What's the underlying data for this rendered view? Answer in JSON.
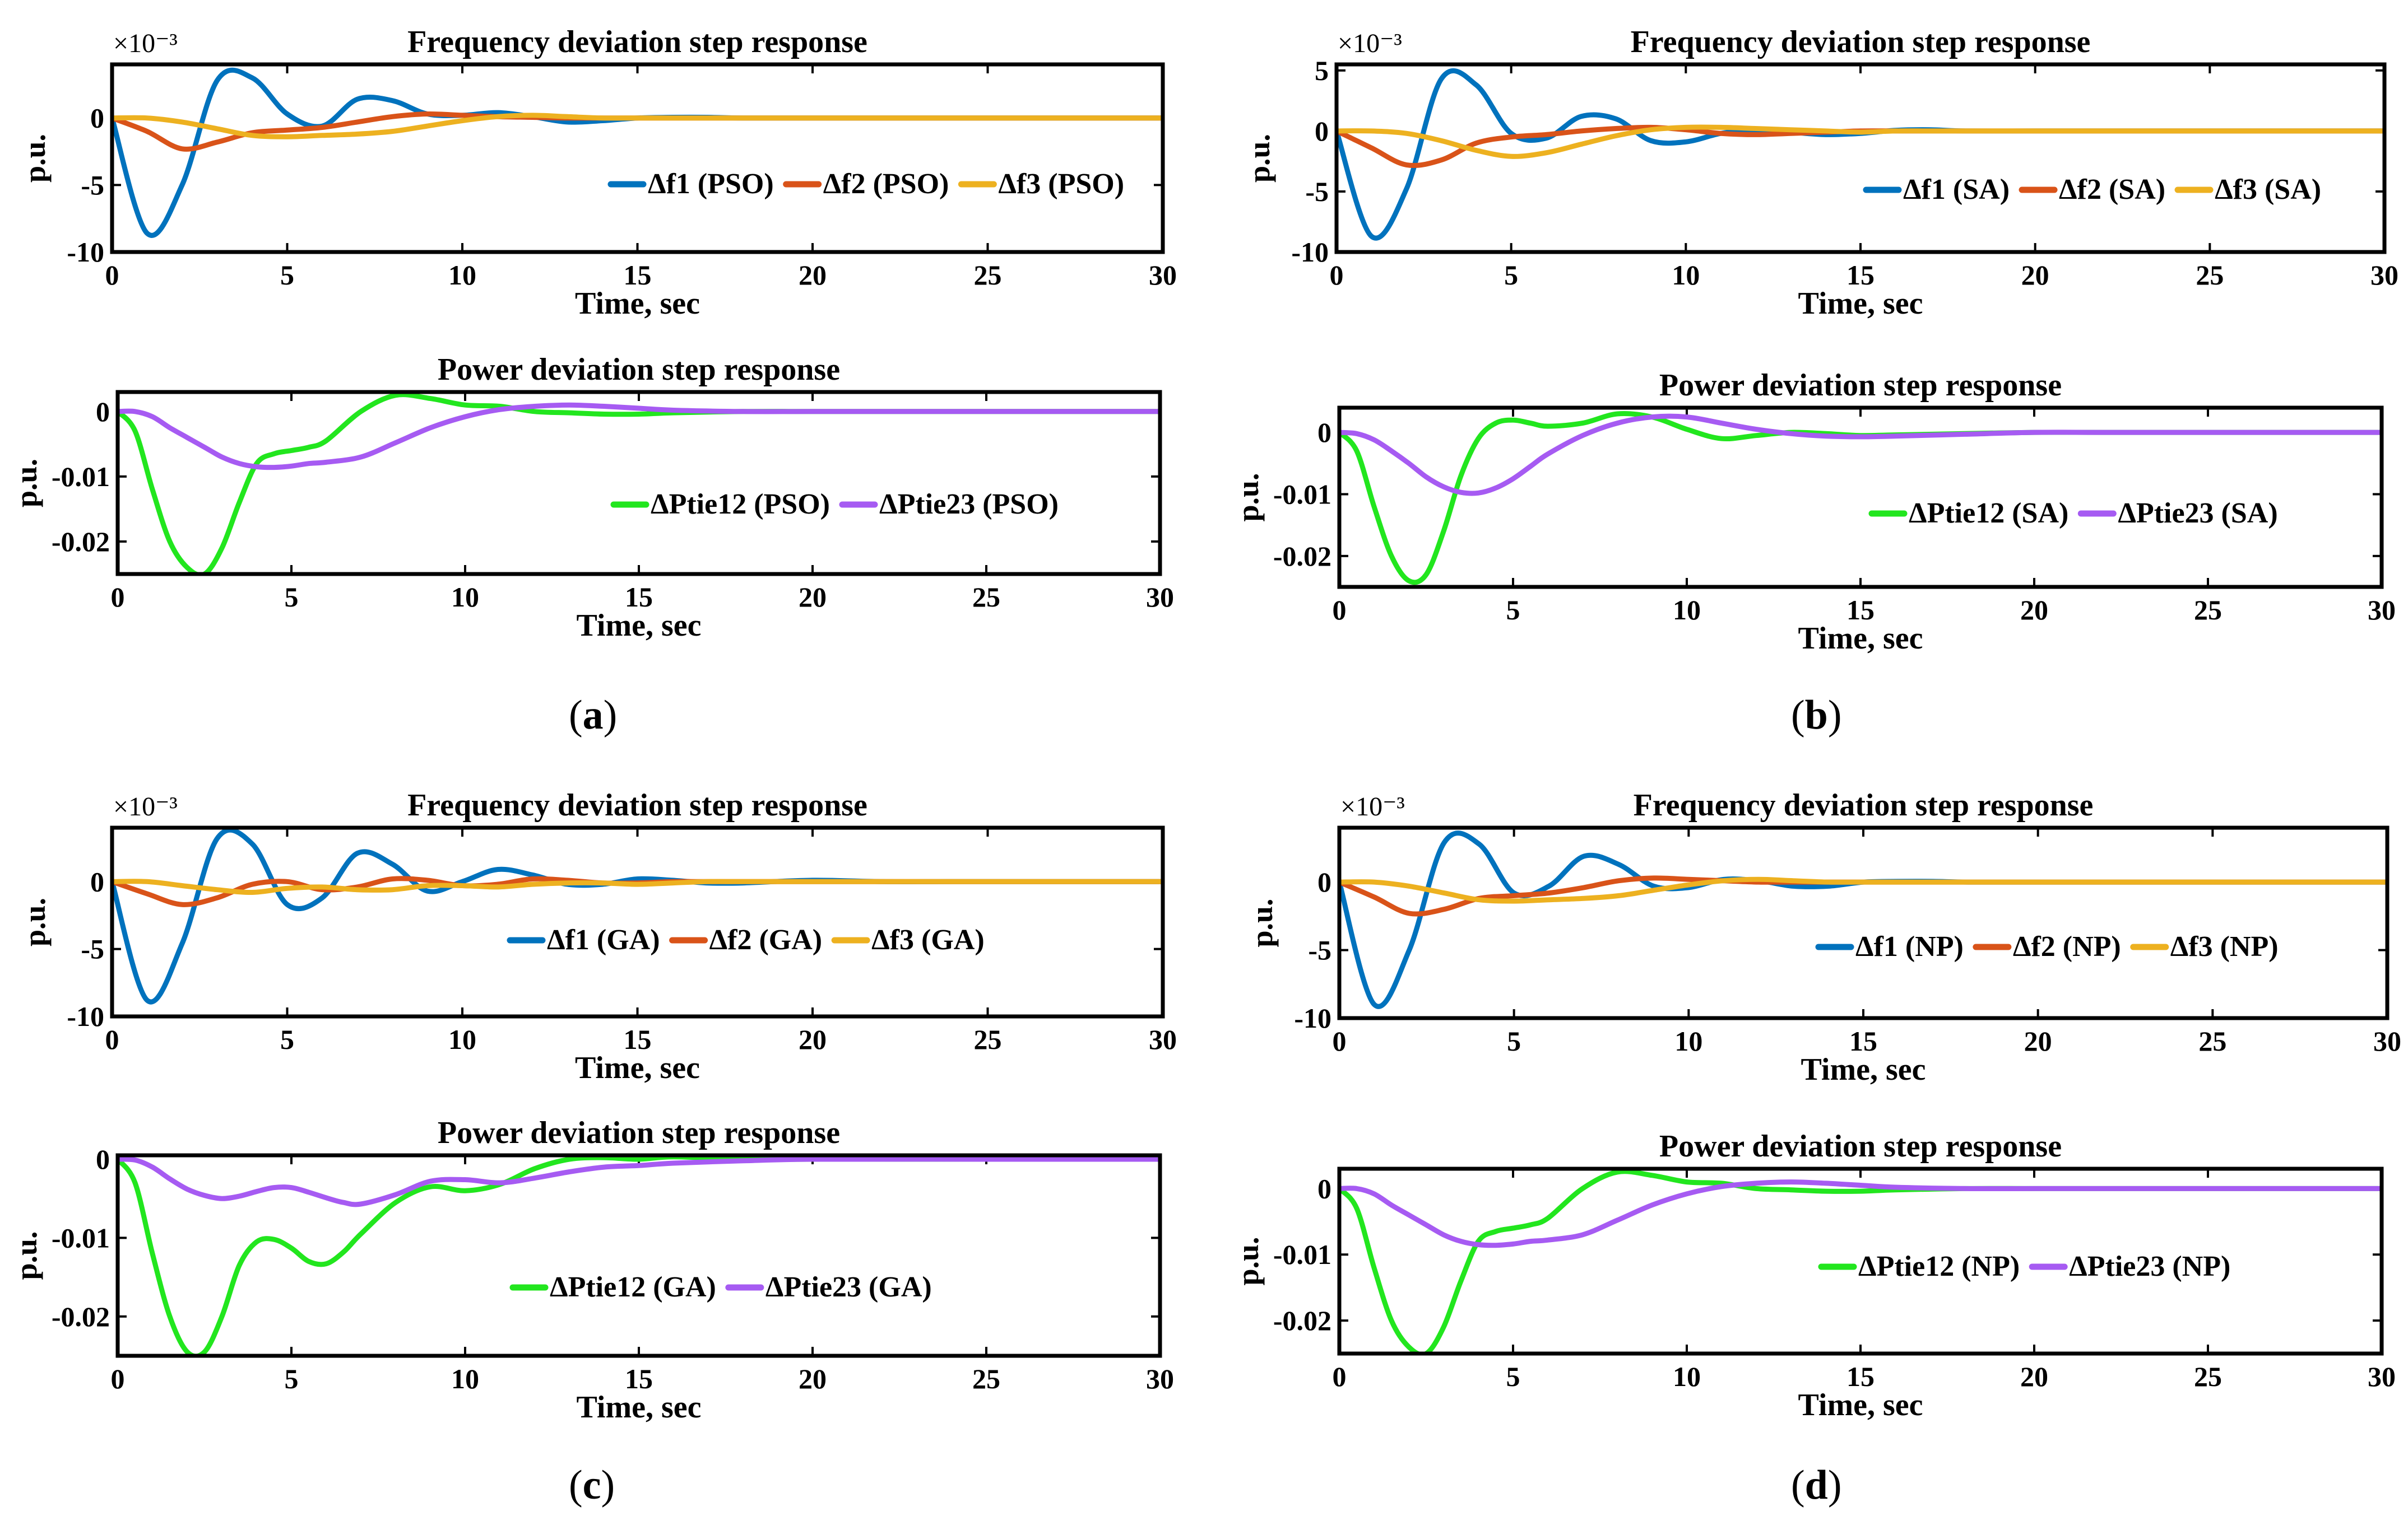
{
  "panel_labels": {
    "a": {
      "open": "(",
      "letter": "a",
      "close": ")"
    },
    "b": {
      "open": "(",
      "letter": "b",
      "close": ")"
    },
    "c": {
      "open": "(",
      "letter": "c",
      "close": ")"
    },
    "d": {
      "open": "(",
      "letter": "d",
      "close": ")"
    }
  },
  "colors": {
    "df1": "#0072BD",
    "df2": "#D95319",
    "df3": "#EDB120",
    "ptie12": "#22E61E",
    "ptie23": "#A65BF2"
  },
  "chart_data": [
    {
      "id": "a-freq",
      "type": "line",
      "title": "Frequency deviation step response",
      "xlabel": "Time, sec",
      "ylabel": "p.u.",
      "exponent": "×10⁻³",
      "xlim": [
        0,
        30
      ],
      "ylim": [
        -10,
        4
      ],
      "xticks": [
        0,
        5,
        10,
        15,
        20,
        25,
        30
      ],
      "yticks": [
        -10,
        -5,
        0
      ],
      "ytick_labels": [
        "-10",
        "-5",
        "0"
      ],
      "x": [
        0,
        1,
        2,
        3,
        4,
        5,
        6,
        7,
        8,
        9,
        10,
        11,
        12,
        13,
        14,
        15,
        16,
        17,
        18,
        20,
        22,
        24,
        26,
        28,
        30
      ],
      "series": [
        {
          "name": "Δf1 (PSO)",
          "color_key": "df1",
          "values": [
            0,
            -8.6,
            -5.0,
            2.8,
            3.0,
            0.3,
            -0.6,
            1.4,
            1.3,
            0.3,
            0.2,
            0.4,
            0.1,
            -0.3,
            -0.2,
            0.0,
            0.05,
            0.05,
            0.0,
            0.0,
            0.0,
            0.0,
            0.0,
            0.0,
            0.0
          ]
        },
        {
          "name": "Δf2 (PSO)",
          "color_key": "df2",
          "values": [
            0,
            -1.0,
            -2.3,
            -1.8,
            -1.1,
            -0.9,
            -0.7,
            -0.3,
            0.1,
            0.3,
            0.2,
            0.1,
            0.05,
            0.0,
            0.0,
            0.0,
            0.0,
            0.0,
            0.0,
            0.0,
            0.0,
            0.0,
            0.0,
            0.0,
            0.0
          ]
        },
        {
          "name": "Δf3 (PSO)",
          "color_key": "df3",
          "values": [
            0,
            0.0,
            -0.3,
            -0.8,
            -1.3,
            -1.4,
            -1.3,
            -1.2,
            -1.0,
            -0.6,
            -0.2,
            0.1,
            0.2,
            0.1,
            0.0,
            0.0,
            0.0,
            0.0,
            0.0,
            0.0,
            0.0,
            0.0,
            0.0,
            0.0,
            0.0
          ]
        }
      ]
    },
    {
      "id": "a-power",
      "type": "line",
      "title": "Power deviation step response",
      "xlabel": "Time, sec",
      "ylabel": "p.u.",
      "exponent": "",
      "xlim": [
        0,
        30
      ],
      "ylim": [
        -0.025,
        0.003
      ],
      "xticks": [
        0,
        5,
        10,
        15,
        20,
        25,
        30
      ],
      "yticks": [
        -0.02,
        -0.01,
        0
      ],
      "ytick_labels": [
        "-0.02",
        "-0.01",
        "0"
      ],
      "x": [
        0,
        0.5,
        1,
        1.5,
        2,
        2.5,
        3,
        3.5,
        4,
        4.5,
        5,
        5.5,
        6,
        7,
        8,
        9,
        10,
        11,
        12,
        13,
        14,
        15,
        16,
        18,
        20,
        22,
        25,
        30
      ],
      "series": [
        {
          "name": "ΔPtie12 (PSO)",
          "color_key": "ptie12",
          "values": [
            0,
            -0.003,
            -0.012,
            -0.02,
            -0.024,
            -0.025,
            -0.021,
            -0.014,
            -0.008,
            -0.0065,
            -0.006,
            -0.0055,
            -0.0045,
            0.0,
            0.0025,
            0.002,
            0.001,
            0.0008,
            0.0,
            -0.0002,
            -0.0004,
            -0.0004,
            -0.0002,
            0.0,
            0.0,
            0.0,
            0.0,
            0.0
          ]
        },
        {
          "name": "ΔPtie23 (PSO)",
          "color_key": "ptie23",
          "values": [
            0,
            0.0,
            -0.0008,
            -0.0025,
            -0.004,
            -0.0055,
            -0.007,
            -0.008,
            -0.0085,
            -0.0086,
            -0.0084,
            -0.008,
            -0.0078,
            -0.007,
            -0.0048,
            -0.0025,
            -0.0008,
            0.0003,
            0.0008,
            0.001,
            0.0008,
            0.0005,
            0.0002,
            0.0,
            0.0,
            0.0,
            0.0,
            0.0
          ]
        }
      ]
    },
    {
      "id": "b-freq",
      "type": "line",
      "title": "Frequency deviation step response",
      "xlabel": "Time, sec",
      "ylabel": "p.u.",
      "exponent": "×10⁻³",
      "xlim": [
        0,
        30
      ],
      "ylim": [
        -10,
        5.5
      ],
      "xticks": [
        0,
        5,
        10,
        15,
        20,
        25,
        30
      ],
      "yticks": [
        -10,
        -5,
        0,
        5
      ],
      "ytick_labels": [
        "-10",
        "-5",
        "0",
        "5"
      ],
      "x": [
        0,
        1,
        2,
        3,
        4,
        5,
        6,
        7,
        8,
        9,
        10,
        11,
        12,
        13,
        14,
        15,
        16,
        17,
        18,
        20,
        22,
        24,
        26,
        28,
        30
      ],
      "series": [
        {
          "name": "Δf1 (SA)",
          "color_key": "df1",
          "values": [
            0,
            -8.7,
            -4.8,
            4.3,
            3.8,
            -0.2,
            -0.6,
            1.2,
            1.0,
            -0.8,
            -0.9,
            -0.2,
            0.1,
            -0.1,
            -0.3,
            -0.2,
            0.05,
            0.1,
            0.0,
            0.0,
            0.0,
            0.0,
            0.0,
            0.0,
            0.0
          ]
        },
        {
          "name": "Δf2 (SA)",
          "color_key": "df2",
          "values": [
            0,
            -1.4,
            -2.8,
            -2.4,
            -1.0,
            -0.5,
            -0.3,
            0.0,
            0.2,
            0.3,
            0.1,
            -0.2,
            -0.3,
            -0.2,
            -0.1,
            0.0,
            0.0,
            0.0,
            0.0,
            0.0,
            0.0,
            0.0,
            0.0,
            0.0,
            0.0
          ]
        },
        {
          "name": "Δf3 (SA)",
          "color_key": "df3",
          "values": [
            0,
            0.0,
            -0.2,
            -0.8,
            -1.6,
            -2.1,
            -1.8,
            -1.1,
            -0.4,
            0.1,
            0.3,
            0.3,
            0.2,
            0.1,
            0.0,
            -0.1,
            0.0,
            0.0,
            0.0,
            0.0,
            0.0,
            0.0,
            0.0,
            0.0,
            0.0
          ]
        }
      ]
    },
    {
      "id": "b-power",
      "type": "line",
      "title": "Power deviation step response",
      "xlabel": "Time, sec",
      "ylabel": "p.u.",
      "exponent": "",
      "xlim": [
        0,
        30
      ],
      "ylim": [
        -0.025,
        0.004
      ],
      "xticks": [
        0,
        5,
        10,
        15,
        20,
        25,
        30
      ],
      "yticks": [
        -0.02,
        -0.01,
        0
      ],
      "ytick_labels": [
        "-0.02",
        "-0.01",
        "0"
      ],
      "x": [
        0,
        0.5,
        1,
        1.5,
        2,
        2.5,
        3,
        3.5,
        4,
        4.5,
        5,
        5.5,
        6,
        7,
        8,
        9,
        10,
        11,
        12,
        13,
        14,
        15,
        16,
        18,
        20,
        22,
        25,
        30
      ],
      "series": [
        {
          "name": "ΔPtie12 (SA)",
          "color_key": "ptie12",
          "values": [
            0,
            -0.003,
            -0.012,
            -0.02,
            -0.024,
            -0.023,
            -0.016,
            -0.007,
            -0.001,
            0.0015,
            0.002,
            0.0015,
            0.001,
            0.0015,
            0.003,
            0.0025,
            0.0005,
            -0.001,
            -0.0005,
            0.0,
            -0.0002,
            -0.0005,
            -0.0004,
            -0.0002,
            0.0,
            0.0,
            0.0,
            0.0
          ]
        },
        {
          "name": "ΔPtie23 (SA)",
          "color_key": "ptie23",
          "values": [
            0,
            -0.0002,
            -0.0012,
            -0.003,
            -0.005,
            -0.0072,
            -0.0088,
            -0.0097,
            -0.0098,
            -0.009,
            -0.0075,
            -0.0055,
            -0.0035,
            -0.0005,
            0.0015,
            0.0025,
            0.0025,
            0.0015,
            0.0005,
            -0.0002,
            -0.0006,
            -0.0007,
            -0.0006,
            -0.0003,
            0.0,
            0.0,
            0.0,
            0.0
          ]
        }
      ]
    },
    {
      "id": "c-freq",
      "type": "line",
      "title": "Frequency deviation step response",
      "xlabel": "Time, sec",
      "ylabel": "p.u.",
      "exponent": "×10⁻³",
      "xlim": [
        0,
        30
      ],
      "ylim": [
        -10,
        4
      ],
      "xticks": [
        0,
        5,
        10,
        15,
        20,
        25,
        30
      ],
      "yticks": [
        -10,
        -5,
        0
      ],
      "ytick_labels": [
        "-10",
        "-5",
        "0"
      ],
      "x": [
        0,
        1,
        2,
        3,
        4,
        5,
        6,
        7,
        8,
        9,
        10,
        11,
        12,
        13,
        14,
        15,
        16,
        17,
        18,
        20,
        22,
        24,
        26,
        28,
        30
      ],
      "series": [
        {
          "name": "Δf1 (GA)",
          "color_key": "df1",
          "values": [
            0,
            -8.8,
            -4.6,
            3.2,
            2.8,
            -1.7,
            -1.2,
            2.1,
            1.3,
            -0.7,
            0.0,
            0.9,
            0.5,
            -0.2,
            -0.2,
            0.2,
            0.1,
            -0.1,
            -0.1,
            0.1,
            0.0,
            0.0,
            0.0,
            0.0,
            0.0
          ]
        },
        {
          "name": "Δf2 (GA)",
          "color_key": "df2",
          "values": [
            0,
            -0.9,
            -1.7,
            -1.2,
            -0.2,
            0.0,
            -0.6,
            -0.4,
            0.2,
            0.1,
            -0.3,
            -0.2,
            0.2,
            0.1,
            -0.1,
            -0.1,
            0.0,
            0.0,
            0.0,
            0.0,
            0.0,
            0.0,
            0.0,
            0.0,
            0.0
          ]
        },
        {
          "name": "Δf3 (GA)",
          "color_key": "df3",
          "values": [
            0,
            0.0,
            -0.3,
            -0.6,
            -0.8,
            -0.5,
            -0.4,
            -0.6,
            -0.6,
            -0.3,
            -0.3,
            -0.4,
            -0.2,
            -0.1,
            -0.1,
            -0.2,
            -0.1,
            0.0,
            0.0,
            0.0,
            0.0,
            0.0,
            0.0,
            0.0,
            0.0
          ]
        }
      ]
    },
    {
      "id": "c-power",
      "type": "line",
      "title": "Power deviation step response",
      "xlabel": "Time, sec",
      "ylabel": "p.u.",
      "exponent": "",
      "xlim": [
        0,
        30
      ],
      "ylim": [
        -0.025,
        0.0005
      ],
      "xticks": [
        0,
        5,
        10,
        15,
        20,
        25,
        30
      ],
      "yticks": [
        -0.02,
        -0.01,
        0
      ],
      "ytick_labels": [
        "-0.02",
        "-0.01",
        "0"
      ],
      "x": [
        0,
        0.5,
        1,
        1.5,
        2,
        2.5,
        3,
        3.5,
        4,
        4.5,
        5,
        5.5,
        6,
        6.5,
        7,
        8,
        9,
        10,
        11,
        12,
        13,
        14,
        15,
        16,
        18,
        20,
        25,
        30
      ],
      "series": [
        {
          "name": "ΔPtie12 (GA)",
          "color_key": "ptie12",
          "values": [
            0,
            -0.003,
            -0.012,
            -0.02,
            -0.0245,
            -0.0245,
            -0.02,
            -0.0135,
            -0.0105,
            -0.0102,
            -0.0113,
            -0.013,
            -0.0133,
            -0.0118,
            -0.0095,
            -0.0055,
            -0.0035,
            -0.004,
            -0.0032,
            -0.0012,
            0.0,
            0.0002,
            0.0,
            0.0003,
            0.0,
            0.0,
            0.0,
            0.0
          ]
        },
        {
          "name": "ΔPtie23 (GA)",
          "color_key": "ptie23",
          "values": [
            0,
            -0.0001,
            -0.001,
            -0.0025,
            -0.0038,
            -0.0046,
            -0.005,
            -0.0047,
            -0.0041,
            -0.0036,
            -0.0036,
            -0.0042,
            -0.0049,
            -0.0055,
            -0.0057,
            -0.0045,
            -0.0028,
            -0.0026,
            -0.003,
            -0.0024,
            -0.0016,
            -0.001,
            -0.0008,
            -0.0005,
            -0.0002,
            0.0,
            0.0,
            0.0
          ]
        }
      ]
    },
    {
      "id": "d-freq",
      "type": "line",
      "title": "Frequency deviation step response",
      "xlabel": "Time, sec",
      "ylabel": "p.u.",
      "exponent": "×10⁻³",
      "xlim": [
        0,
        30
      ],
      "ylim": [
        -10,
        4
      ],
      "xticks": [
        0,
        5,
        10,
        15,
        20,
        25,
        30
      ],
      "yticks": [
        -10,
        -5,
        0
      ],
      "ytick_labels": [
        "-10",
        "-5",
        "0"
      ],
      "x": [
        0,
        1,
        2,
        3,
        4,
        5,
        6,
        7,
        8,
        9,
        10,
        11,
        12,
        13,
        14,
        15,
        16,
        17,
        18,
        20,
        22,
        24,
        26,
        28,
        30
      ],
      "series": [
        {
          "name": "Δf1 (NP)",
          "color_key": "df1",
          "values": [
            0,
            -9.0,
            -5.0,
            2.9,
            2.8,
            -0.8,
            -0.3,
            1.9,
            1.3,
            -0.3,
            -0.4,
            0.2,
            0.1,
            -0.3,
            -0.3,
            0.0,
            0.05,
            0.05,
            0.0,
            0.0,
            0.0,
            0.0,
            0.0,
            0.0,
            0.0
          ]
        },
        {
          "name": "Δf2 (NP)",
          "color_key": "df2",
          "values": [
            0,
            -1.1,
            -2.3,
            -2.0,
            -1.2,
            -1.0,
            -0.8,
            -0.4,
            0.1,
            0.3,
            0.2,
            0.1,
            0.0,
            0.0,
            0.0,
            0.0,
            0.0,
            0.0,
            0.0,
            0.0,
            0.0,
            0.0,
            0.0,
            0.0,
            0.0
          ]
        },
        {
          "name": "Δf3 (NP)",
          "color_key": "df3",
          "values": [
            0,
            0.0,
            -0.3,
            -0.8,
            -1.3,
            -1.4,
            -1.3,
            -1.2,
            -1.0,
            -0.6,
            -0.2,
            0.1,
            0.2,
            0.1,
            0.0,
            0.0,
            0.0,
            0.0,
            0.0,
            0.0,
            0.0,
            0.0,
            0.0,
            0.0,
            0.0
          ]
        }
      ]
    },
    {
      "id": "d-power",
      "type": "line",
      "title": "Power deviation step response",
      "xlabel": "Time, sec",
      "ylabel": "p.u.",
      "exponent": "",
      "xlim": [
        0,
        30
      ],
      "ylim": [
        -0.025,
        0.003
      ],
      "xticks": [
        0,
        5,
        10,
        15,
        20,
        25,
        30
      ],
      "yticks": [
        -0.02,
        -0.01,
        0
      ],
      "ytick_labels": [
        "-0.02",
        "-0.01",
        "0"
      ],
      "x": [
        0,
        0.5,
        1,
        1.5,
        2,
        2.5,
        3,
        3.5,
        4,
        4.5,
        5,
        5.5,
        6,
        7,
        8,
        9,
        10,
        11,
        12,
        13,
        14,
        15,
        16,
        18,
        20,
        22,
        25,
        30
      ],
      "series": [
        {
          "name": "ΔPtie12 (NP)",
          "color_key": "ptie12",
          "values": [
            0,
            -0.003,
            -0.012,
            -0.02,
            -0.024,
            -0.025,
            -0.021,
            -0.014,
            -0.008,
            -0.0065,
            -0.006,
            -0.0055,
            -0.0045,
            0.0,
            0.0025,
            0.002,
            0.001,
            0.0008,
            0.0,
            -0.0002,
            -0.0004,
            -0.0004,
            -0.0002,
            0.0,
            0.0,
            0.0,
            0.0,
            0.0
          ]
        },
        {
          "name": "ΔPtie23 (NP)",
          "color_key": "ptie23",
          "values": [
            0,
            0.0,
            -0.0008,
            -0.0025,
            -0.004,
            -0.0055,
            -0.007,
            -0.008,
            -0.0085,
            -0.0086,
            -0.0084,
            -0.008,
            -0.0078,
            -0.007,
            -0.0048,
            -0.0025,
            -0.0008,
            0.0003,
            0.0008,
            0.001,
            0.0008,
            0.0005,
            0.0002,
            0.0,
            0.0,
            0.0,
            0.0,
            0.0
          ]
        }
      ]
    }
  ]
}
